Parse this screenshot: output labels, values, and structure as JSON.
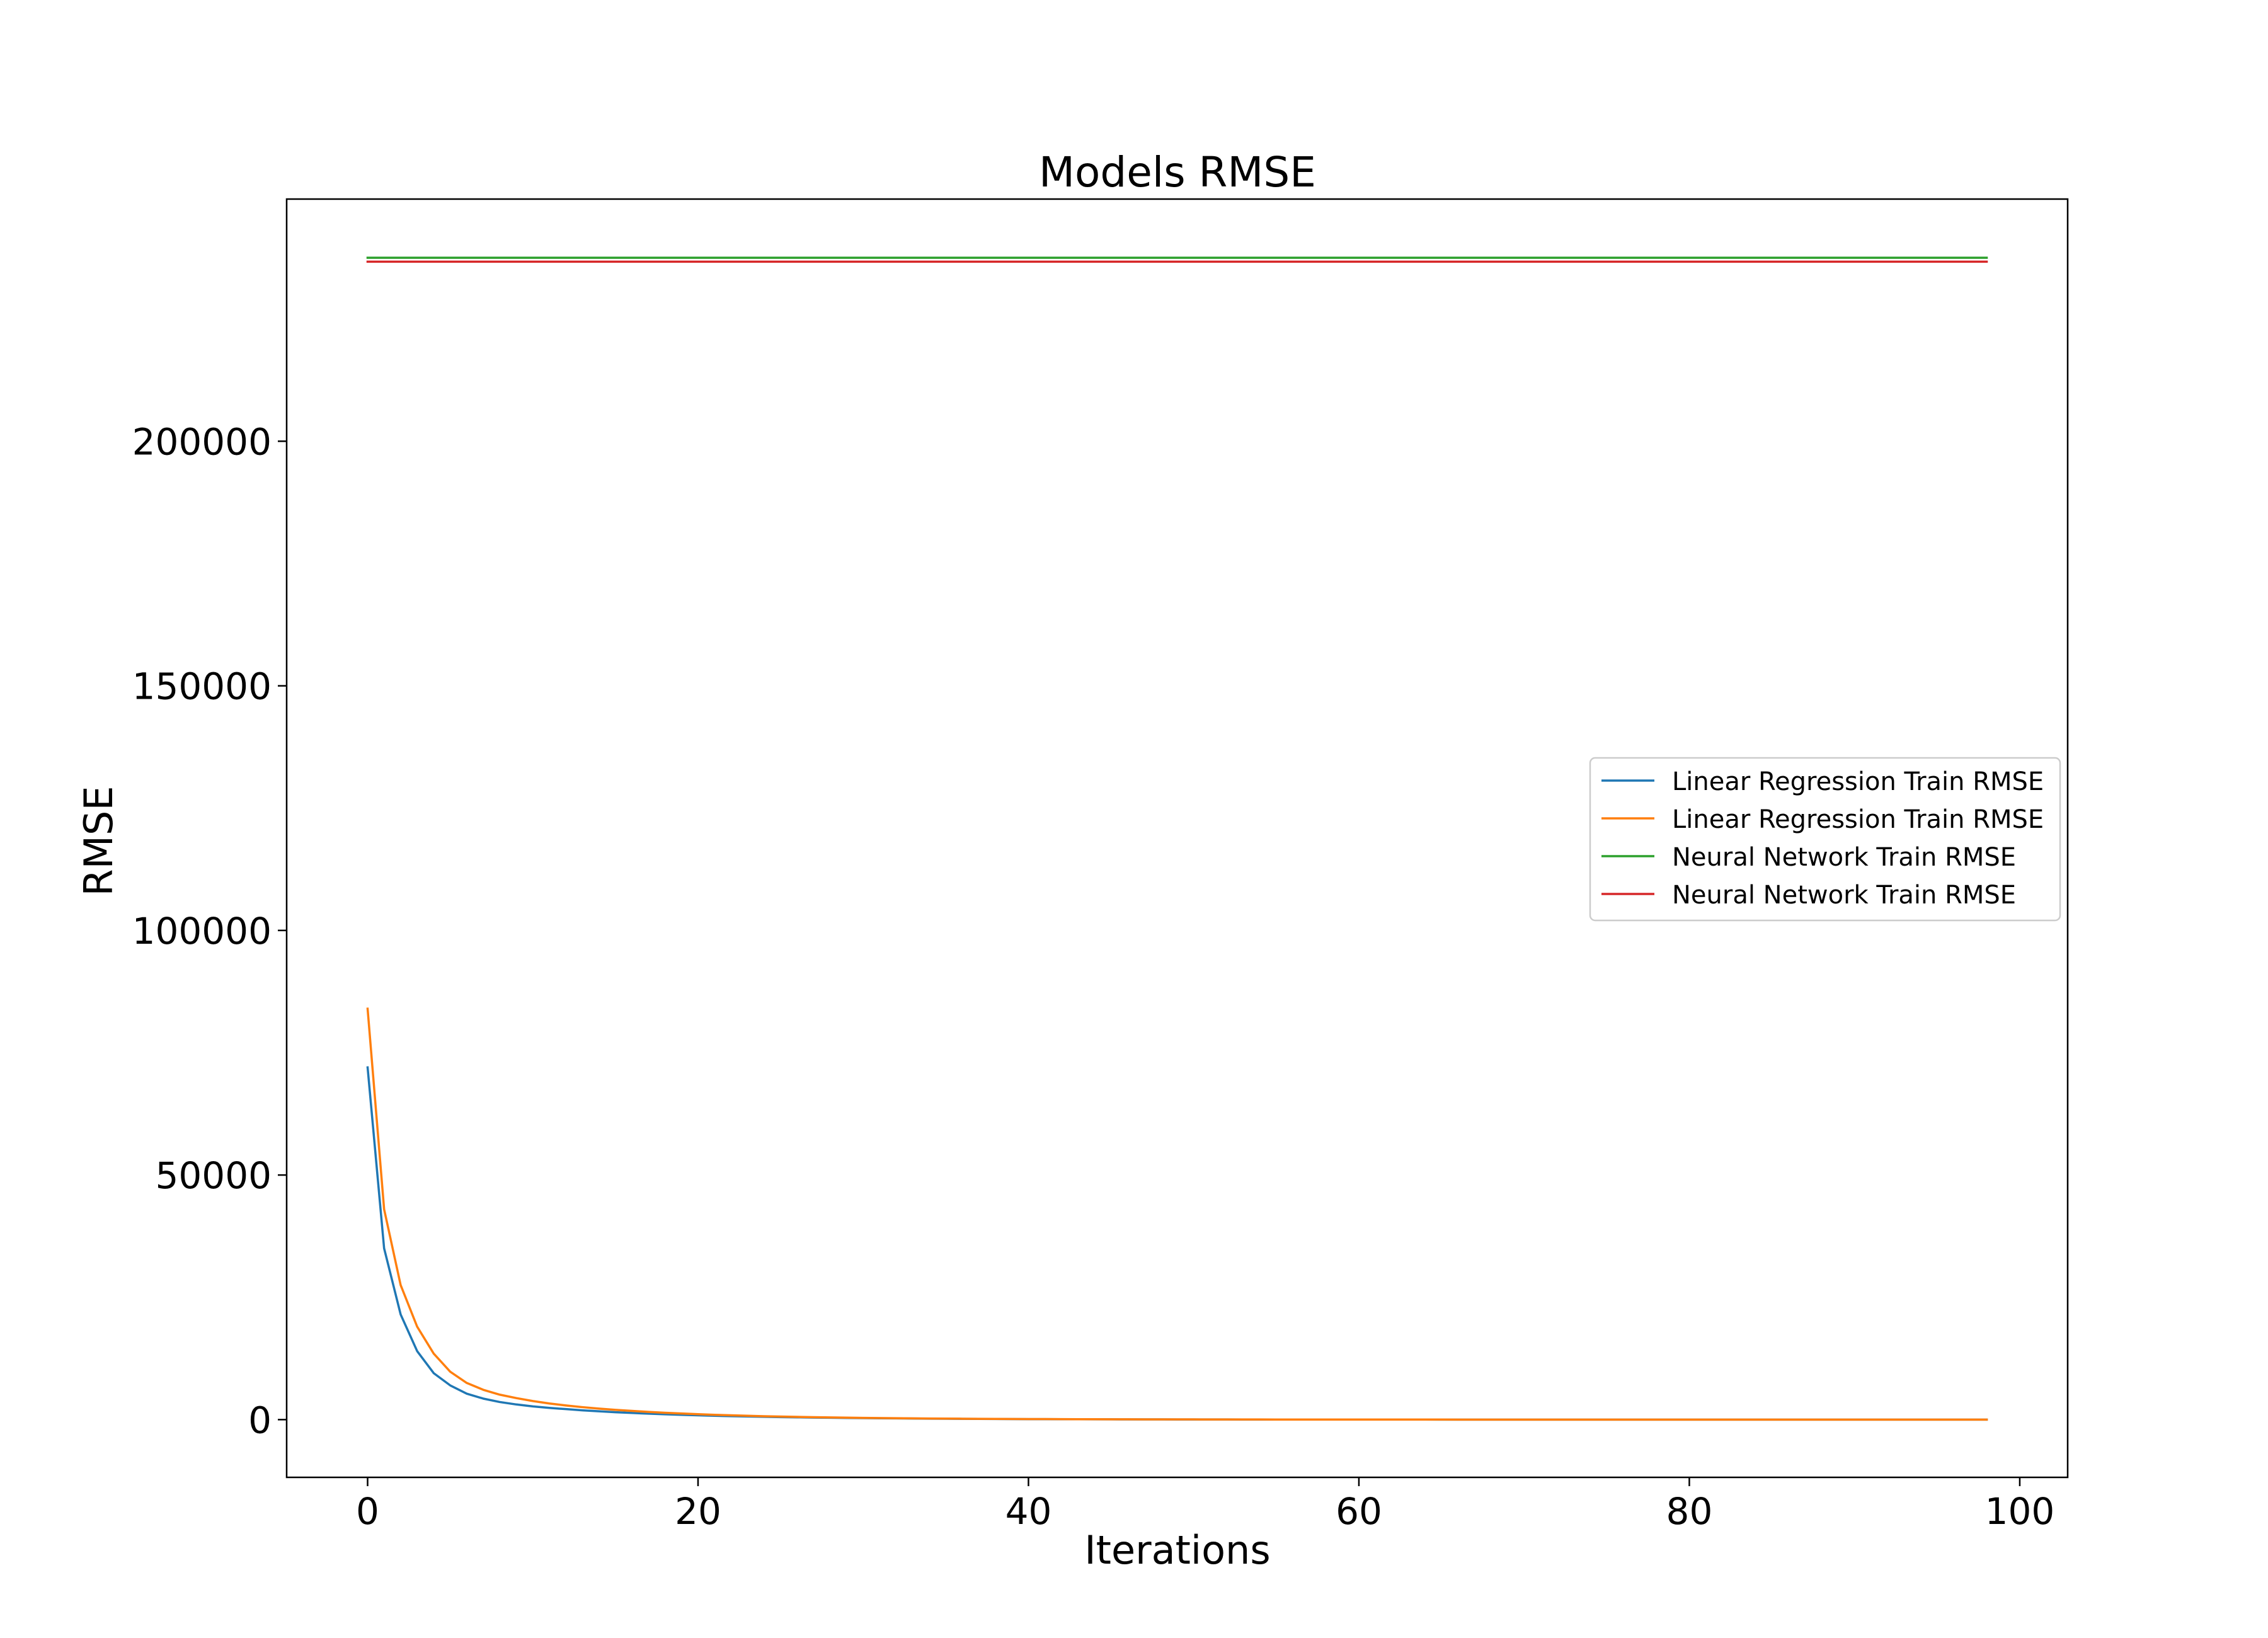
{
  "chart_data": {
    "type": "line",
    "title": "Models RMSE",
    "xlabel": "Iterations",
    "ylabel": "RMSE",
    "xlim": [
      -4.9,
      102.9
    ],
    "ylim": [
      -11800,
      249500
    ],
    "xticks": [
      0,
      20,
      40,
      60,
      80,
      100
    ],
    "yticks": [
      0,
      50000,
      100000,
      150000,
      200000
    ],
    "xtick_labels": [
      "0",
      "20",
      "40",
      "60",
      "80",
      "100"
    ],
    "ytick_labels": [
      "0",
      "50000",
      "100000",
      "150000",
      "200000"
    ],
    "grid": false,
    "legend_position": "right",
    "x": [
      0,
      1,
      2,
      3,
      4,
      5,
      6,
      7,
      8,
      9,
      10,
      11,
      12,
      13,
      14,
      15,
      16,
      17,
      18,
      19,
      20,
      21,
      22,
      23,
      24,
      25,
      26,
      27,
      28,
      29,
      30,
      31,
      32,
      33,
      34,
      35,
      36,
      37,
      38,
      39,
      40,
      41,
      42,
      43,
      44,
      45,
      46,
      47,
      48,
      49,
      50,
      51,
      52,
      53,
      54,
      55,
      56,
      57,
      58,
      59,
      60,
      61,
      62,
      63,
      64,
      65,
      66,
      67,
      68,
      69,
      70,
      71,
      72,
      73,
      74,
      75,
      76,
      77,
      78,
      79,
      80,
      81,
      82,
      83,
      84,
      85,
      86,
      87,
      88,
      89,
      90,
      91,
      92,
      93,
      94,
      95,
      96,
      97,
      98
    ],
    "series": [
      {
        "name": "Linear Regression Train RMSE",
        "color": "#1f77b4",
        "values": [
          72000,
          35000,
          21500,
          14000,
          9500,
          7000,
          5300,
          4300,
          3600,
          3100,
          2700,
          2400,
          2150,
          1900,
          1700,
          1520,
          1360,
          1220,
          1090,
          980,
          880,
          790,
          710,
          640,
          580,
          520,
          470,
          420,
          380,
          340,
          310,
          280,
          250,
          225,
          200,
          180,
          160,
          145,
          130,
          115,
          100,
          90,
          80,
          72,
          65,
          58,
          52,
          47,
          42,
          38,
          34,
          30,
          27,
          24,
          22,
          20,
          18,
          16,
          14,
          13,
          12,
          11,
          10,
          9,
          8,
          7,
          6,
          6,
          5,
          5,
          4,
          4,
          3,
          3,
          3,
          2,
          2,
          2,
          2,
          1,
          1,
          1,
          1,
          1,
          1,
          1,
          0,
          0,
          0,
          0,
          0,
          0,
          0,
          0,
          0,
          0,
          0,
          0,
          0
        ]
      },
      {
        "name": "Linear Regression Train RMSE",
        "color": "#ff7f0e",
        "values": [
          84000,
          43000,
          27500,
          19000,
          13500,
          9800,
          7500,
          6100,
          5100,
          4400,
          3800,
          3300,
          2900,
          2550,
          2250,
          2000,
          1780,
          1580,
          1400,
          1250,
          1110,
          990,
          880,
          790,
          700,
          630,
          560,
          500,
          450,
          400,
          360,
          320,
          290,
          260,
          230,
          205,
          185,
          165,
          148,
          132,
          118,
          106,
          95,
          85,
          76,
          68,
          61,
          55,
          49,
          44,
          40,
          36,
          32,
          29,
          26,
          23,
          21,
          19,
          17,
          15,
          14,
          12,
          11,
          10,
          9,
          8,
          7,
          7,
          6,
          5,
          5,
          4,
          4,
          4,
          3,
          3,
          3,
          2,
          2,
          2,
          2,
          2,
          1,
          1,
          1,
          1,
          1,
          1,
          1,
          1,
          0,
          0,
          0,
          0,
          0,
          0,
          0,
          0,
          0
        ]
      },
      {
        "name": "Neural Network Train RMSE",
        "color": "#2ca02c",
        "values": [
          237500,
          237500,
          237500,
          237500,
          237500,
          237500,
          237500,
          237500,
          237500,
          237500,
          237500,
          237500,
          237500,
          237500,
          237500,
          237500,
          237500,
          237500,
          237500,
          237500,
          237500,
          237500,
          237500,
          237500,
          237500,
          237500,
          237500,
          237500,
          237500,
          237500,
          237500,
          237500,
          237500,
          237500,
          237500,
          237500,
          237500,
          237500,
          237500,
          237500,
          237500,
          237500,
          237500,
          237500,
          237500,
          237500,
          237500,
          237500,
          237500,
          237500,
          237500,
          237500,
          237500,
          237500,
          237500,
          237500,
          237500,
          237500,
          237500,
          237500,
          237500,
          237500,
          237500,
          237500,
          237500,
          237500,
          237500,
          237500,
          237500,
          237500,
          237500,
          237500,
          237500,
          237500,
          237500,
          237500,
          237500,
          237500,
          237500,
          237500,
          237500,
          237500,
          237500,
          237500,
          237500,
          237500,
          237500,
          237500,
          237500,
          237500,
          237500,
          237500,
          237500,
          237500,
          237500,
          237500,
          237500,
          237500,
          237500
        ]
      },
      {
        "name": "Neural Network Train RMSE",
        "color": "#d62728",
        "values": [
          236700,
          236700,
          236700,
          236700,
          236700,
          236700,
          236700,
          236700,
          236700,
          236700,
          236700,
          236700,
          236700,
          236700,
          236700,
          236700,
          236700,
          236700,
          236700,
          236700,
          236700,
          236700,
          236700,
          236700,
          236700,
          236700,
          236700,
          236700,
          236700,
          236700,
          236700,
          236700,
          236700,
          236700,
          236700,
          236700,
          236700,
          236700,
          236700,
          236700,
          236700,
          236700,
          236700,
          236700,
          236700,
          236700,
          236700,
          236700,
          236700,
          236700,
          236700,
          236700,
          236700,
          236700,
          236700,
          236700,
          236700,
          236700,
          236700,
          236700,
          236700,
          236700,
          236700,
          236700,
          236700,
          236700,
          236700,
          236700,
          236700,
          236700,
          236700,
          236700,
          236700,
          236700,
          236700,
          236700,
          236700,
          236700,
          236700,
          236700,
          236700,
          236700,
          236700,
          236700,
          236700,
          236700,
          236700,
          236700,
          236700,
          236700,
          236700,
          236700,
          236700,
          236700,
          236700,
          236700,
          236700,
          236700,
          236700
        ]
      }
    ]
  }
}
